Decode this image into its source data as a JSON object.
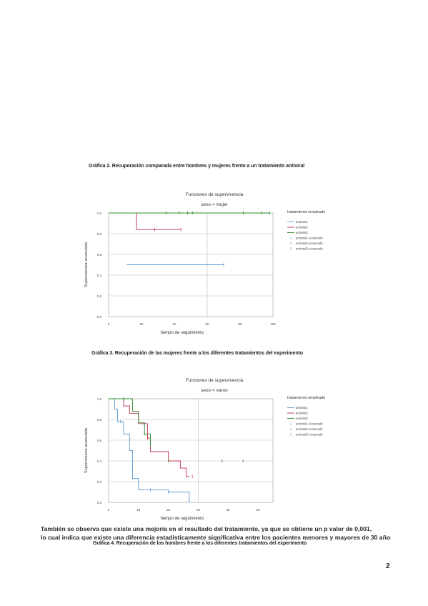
{
  "captions": {
    "grafica2": "Gráfica 2. Recuperación comparada entre hombres y mujeres frente a un tratamiento antiviral",
    "grafica3": "Gráfica 3. Recuperación de las mujeres frente a los diferentes tratamientos del experimento",
    "grafica4": "Gráfica 4. Recuperación de los hombres frente a los diferentes tratamientos del experimento"
  },
  "body_text": {
    "line1": "También se observa que existe una mejoría en el resultado del tratamiento, ya que se obtiene un p valor de 0,001,",
    "line2": "lo cual indica que existe una diferencia estadísticamente significativa entre los pacientes menores y mayores de 30 años"
  },
  "page_number": "2",
  "chart_data": [
    {
      "type": "line",
      "title": "Funciones de supervivencia",
      "subtitle": "sexo = mujer",
      "xlabel": "tiempo de seguimiento",
      "ylabel": "Supervivencia acumulada",
      "xticks": [
        "0",
        "20",
        "40",
        "60",
        "80",
        "100"
      ],
      "yticks": [
        "1.0",
        "0.8",
        "0.6",
        "0.4",
        "0.2",
        "0.0"
      ],
      "xlim": [
        0,
        100
      ],
      "ylim": [
        0,
        1.0
      ],
      "grid": true,
      "legend_title": "tratamiento empleado",
      "legend_position": "right",
      "legend": [
        {
          "label": "antiviral1",
          "color": "#5b9bd5",
          "style": "line"
        },
        {
          "label": "antiviral2",
          "color": "#c0304a",
          "style": "line"
        },
        {
          "label": "antiviral3",
          "color": "#2e8b2e",
          "style": "line"
        },
        {
          "label": "antiviral1-censurado",
          "color": "#9ec5e8",
          "style": "censor"
        },
        {
          "label": "antiviral2-censurado",
          "color": "#e58a9a",
          "style": "censor"
        },
        {
          "label": "antiviral3-censurado",
          "color": "#7cc47c",
          "style": "censor"
        }
      ],
      "series": [
        {
          "name": "antiviral1",
          "color": "#5b9bd5",
          "steps": [
            [
              11,
              0.5
            ],
            [
              70,
              0.5
            ]
          ],
          "censored": [
            [
              70,
              0.5
            ]
          ]
        },
        {
          "name": "antiviral2",
          "color": "#c0304a",
          "steps": [
            [
              0,
              1.0
            ],
            [
              17,
              1.0
            ],
            [
              17,
              0.84
            ],
            [
              44,
              0.84
            ]
          ],
          "censored": [
            [
              28,
              0.84
            ],
            [
              44,
              0.84
            ]
          ]
        },
        {
          "name": "antiviral3",
          "color": "#2e8b2e",
          "steps": [
            [
              0,
              1.0
            ],
            [
              98,
              1.0
            ]
          ],
          "censored": [
            [
              35,
              1.0
            ],
            [
              43,
              1.0
            ],
            [
              48,
              1.0
            ],
            [
              51,
              1.0
            ],
            [
              82,
              1.0
            ],
            [
              93,
              1.0
            ],
            [
              98,
              1.0
            ]
          ]
        }
      ]
    },
    {
      "type": "line",
      "title": "Funciones de supervivencia",
      "subtitle": "sexo = varon",
      "xlabel": "tiempo de seguimiento",
      "ylabel": "Supervivencia acumulada",
      "xticks": [
        "0",
        "10",
        "20",
        "30",
        "40",
        "50"
      ],
      "yticks": [
        "1.0",
        "0.8",
        "0.6",
        "0.4",
        "0.2",
        "0.0"
      ],
      "xlim": [
        0,
        55
      ],
      "ylim": [
        0,
        1.0
      ],
      "grid": true,
      "legend_title": "tratamiento empleado",
      "legend_position": "right",
      "legend": [
        {
          "label": "antiviral1",
          "color": "#5b9bd5",
          "style": "line"
        },
        {
          "label": "antiviral2",
          "color": "#c0304a",
          "style": "line"
        },
        {
          "label": "antiviral3",
          "color": "#2e8b2e",
          "style": "line"
        },
        {
          "label": "antiviral1-censurado",
          "color": "#9ec5e8",
          "style": "censor"
        },
        {
          "label": "antiviral2-censurado",
          "color": "#e58a9a",
          "style": "censor"
        },
        {
          "label": "antiviral3-censurado",
          "color": "#7cc47c",
          "style": "censor"
        }
      ],
      "series": [
        {
          "name": "antiviral1",
          "color": "#5b9bd5",
          "steps": [
            [
              0,
              1.0
            ],
            [
              2,
              1.0
            ],
            [
              2,
              0.9
            ],
            [
              3,
              0.9
            ],
            [
              3,
              0.78
            ],
            [
              5,
              0.78
            ],
            [
              5,
              0.66
            ],
            [
              7,
              0.66
            ],
            [
              7,
              0.5
            ],
            [
              8,
              0.5
            ],
            [
              8,
              0.23
            ],
            [
              10,
              0.23
            ],
            [
              10,
              0.12
            ],
            [
              20,
              0.12
            ],
            [
              20,
              0.1
            ],
            [
              27,
              0.1
            ],
            [
              27,
              0.0
            ]
          ],
          "censored": [
            [
              4,
              0.78
            ],
            [
              14,
              0.12
            ],
            [
              20,
              0.1
            ]
          ]
        },
        {
          "name": "antiviral2",
          "color": "#c0304a",
          "steps": [
            [
              0,
              1.0
            ],
            [
              5,
              1.0
            ],
            [
              5,
              0.93
            ],
            [
              7,
              0.93
            ],
            [
              7,
              0.86
            ],
            [
              10,
              0.86
            ],
            [
              10,
              0.76
            ],
            [
              13,
              0.76
            ],
            [
              13,
              0.62
            ],
            [
              14,
              0.62
            ],
            [
              14,
              0.49
            ],
            [
              20,
              0.49
            ],
            [
              20,
              0.4
            ],
            [
              24,
              0.4
            ],
            [
              24,
              0.33
            ],
            [
              26,
              0.33
            ],
            [
              26,
              0.25
            ],
            [
              27,
              0.25
            ]
          ],
          "censored": [
            [
              13,
              0.62
            ],
            [
              28,
              0.25
            ]
          ]
        },
        {
          "name": "antiviral3",
          "color": "#2e8b2e",
          "steps": [
            [
              0,
              1.0
            ],
            [
              8,
              1.0
            ],
            [
              8,
              0.88
            ],
            [
              10,
              0.88
            ],
            [
              10,
              0.77
            ],
            [
              12,
              0.77
            ],
            [
              12,
              0.66
            ],
            [
              14,
              0.66
            ],
            [
              14,
              0.55
            ]
          ],
          "censored": [
            [
              5,
              1.0
            ],
            [
              12,
              0.66
            ],
            [
              14,
              0.55
            ],
            [
              20,
              0.4
            ],
            [
              38,
              0.4
            ],
            [
              45,
              0.4
            ]
          ]
        }
      ]
    }
  ]
}
